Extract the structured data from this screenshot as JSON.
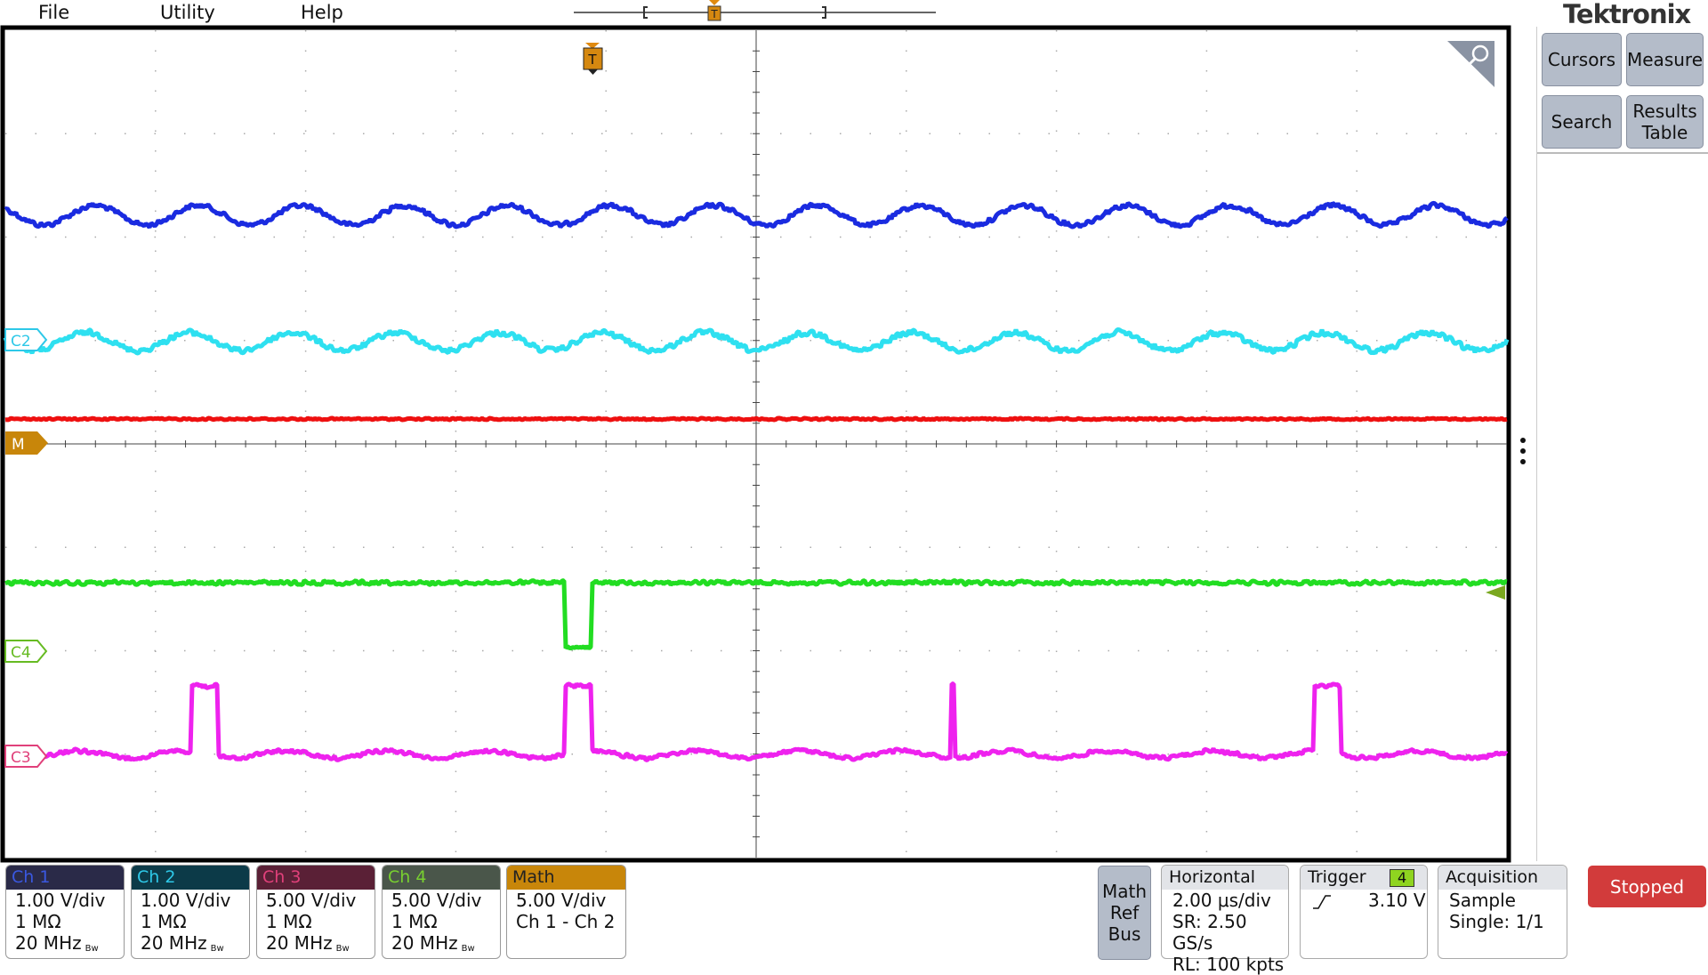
{
  "menu": [
    "File",
    "Utility",
    "Help"
  ],
  "brand": "Tektronix",
  "side_buttons": [
    "Cursors",
    "Measure",
    "Search",
    "Results Table"
  ],
  "markers": {
    "trigger": "T",
    "ch2": "C2",
    "math": "M",
    "ch4": "C4",
    "ch3": "C3"
  },
  "channels": [
    {
      "name": "Ch 1",
      "scale": "1.00 V/div",
      "impedance": "1 MΩ",
      "bandwidth": "20 MHz",
      "bw": "Bw"
    },
    {
      "name": "Ch 2",
      "scale": "1.00 V/div",
      "impedance": "1 MΩ",
      "bandwidth": "20 MHz",
      "bw": "Bw"
    },
    {
      "name": "Ch 3",
      "scale": "5.00 V/div",
      "impedance": "1 MΩ",
      "bandwidth": "20 MHz",
      "bw": "Bw"
    },
    {
      "name": "Ch 4",
      "scale": "5.00 V/div",
      "impedance": "1 MΩ",
      "bandwidth": "20 MHz",
      "bw": "Bw"
    }
  ],
  "math": {
    "name": "Math",
    "scale": "5.00 V/div",
    "expression": "Ch 1 - Ch 2"
  },
  "math_ref_bus": "Math Ref Bus",
  "horizontal": {
    "title": "Horizontal",
    "scale": "2.00 μs/div",
    "sample_rate": "SR: 2.50 GS/s",
    "record_length": "RL: 100 kpts"
  },
  "trigger": {
    "title": "Trigger",
    "source": "4",
    "level": "3.10 V"
  },
  "acquisition": {
    "title": "Acquisition",
    "mode": "Sample",
    "count": "Single: 1/1"
  },
  "run_state": "Stopped"
}
